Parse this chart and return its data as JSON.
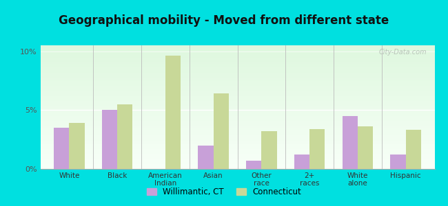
{
  "title": "Geographical mobility - Moved from different state",
  "categories": [
    "White",
    "Black",
    "American\nIndian",
    "Asian",
    "Other\nrace",
    "2+\nraces",
    "White\nalone",
    "Hispanic"
  ],
  "willimantic": [
    3.5,
    5.0,
    0.0,
    2.0,
    0.7,
    1.2,
    4.5,
    1.2
  ],
  "connecticut": [
    3.9,
    5.5,
    9.6,
    6.4,
    3.2,
    3.4,
    3.6,
    3.3
  ],
  "willimantic_color": "#c8a0d8",
  "connecticut_color": "#c8d898",
  "background_outer": "#00e0e0",
  "ylim": [
    0,
    10.5
  ],
  "yticks": [
    0,
    5,
    10
  ],
  "yticklabels": [
    "0%",
    "5%",
    "10%"
  ],
  "bar_width": 0.32,
  "legend_label1": "Willimantic, CT",
  "legend_label2": "Connecticut",
  "title_fontsize": 12,
  "watermark": "City-Data.com"
}
